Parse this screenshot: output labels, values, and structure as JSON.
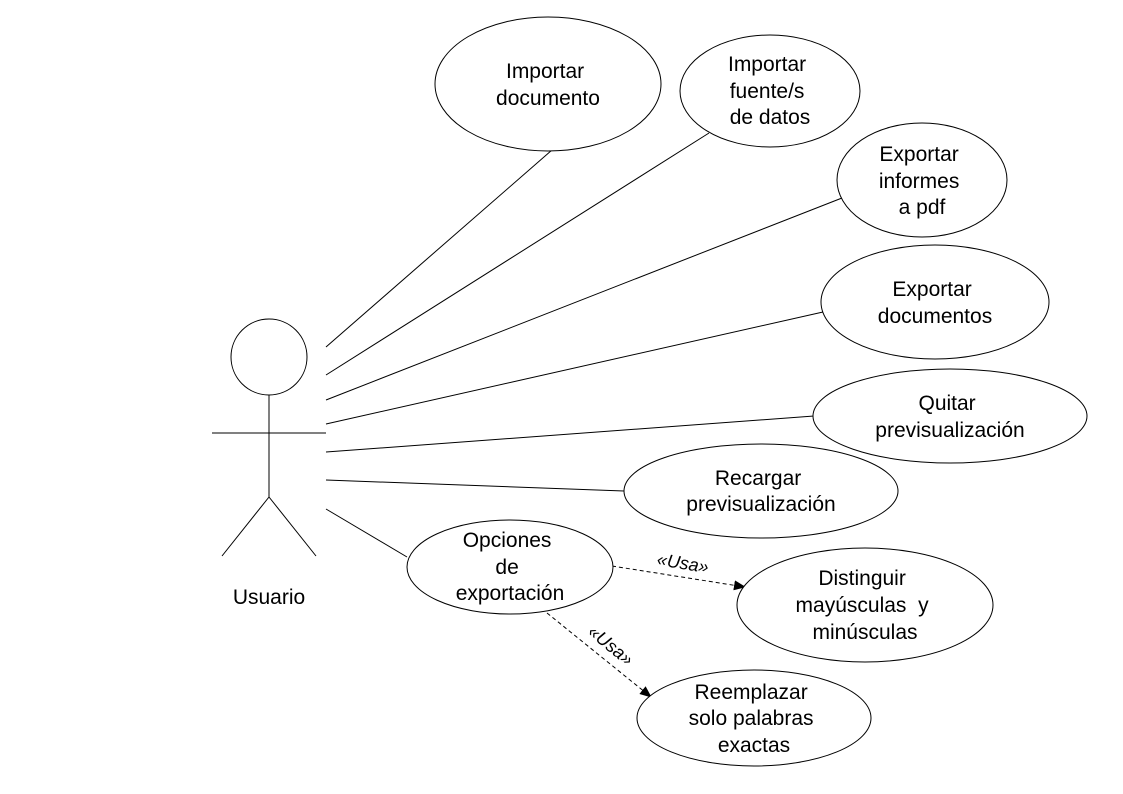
{
  "actor": {
    "name": "Usuario"
  },
  "use_cases": [
    {
      "id": "importar-documento",
      "lines": [
        "Importar",
        "documento"
      ]
    },
    {
      "id": "importar-fuentes-datos",
      "lines": [
        "Importar",
        "fuente/s",
        "de datos"
      ]
    },
    {
      "id": "exportar-informes-pdf",
      "lines": [
        "Exportar",
        "informes",
        "a pdf"
      ]
    },
    {
      "id": "exportar-documentos",
      "lines": [
        "Exportar",
        "documentos"
      ]
    },
    {
      "id": "quitar-previsualizacion",
      "lines": [
        "Quitar",
        "previsualización"
      ]
    },
    {
      "id": "recargar-previsualizacion",
      "lines": [
        "Recargar",
        "previsualización"
      ]
    },
    {
      "id": "opciones-exportacion",
      "lines": [
        "Opciones",
        "de",
        "exportación"
      ]
    },
    {
      "id": "distinguir-mayusculas",
      "lines": [
        "Distinguir",
        "mayúsculas  y",
        "minúsculas"
      ]
    },
    {
      "id": "reemplazar-palabras",
      "lines": [
        "Reemplazar",
        "solo palabras",
        "exactas"
      ]
    }
  ],
  "relations": [
    {
      "label": "«Usa»"
    },
    {
      "label": "«Usa»"
    }
  ],
  "colors": {
    "stroke": "#000000",
    "background": "#ffffff"
  }
}
